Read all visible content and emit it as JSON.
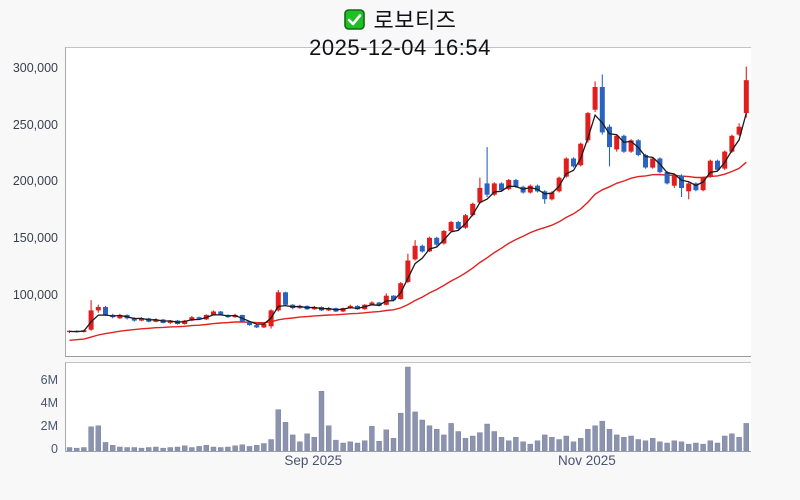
{
  "header": {
    "checkbox_icon": "green-checked-checkbox",
    "symbol_name": "로보티즈",
    "timestamp": "2025-12-04 16:54"
  },
  "colors": {
    "up_candle": "#e11d1d",
    "down_candle": "#2a64c0",
    "ma_fast_line": "#1b1b1b",
    "ma_slow_line": "#e12222",
    "volume_bar": "#8b93ae",
    "volume_bar_edge": "#747d99",
    "price_axis_label": "#3a3f4c",
    "volume_axis_label": "#495572",
    "panel_background": "#ffffff",
    "page_background": "#f8f8f9",
    "checkbox_green": "#1fc024"
  },
  "chart_data": {
    "type": "candlestick_with_volume",
    "title": "로보티즈",
    "subtitle": "2025-12-04 16:54",
    "legend_position": "none",
    "grid": false,
    "price_axis": {
      "tick_labels": [
        "300,000",
        "250,000",
        "200,000",
        "150,000",
        "100,000"
      ],
      "tick_values": [
        300000,
        250000,
        200000,
        150000,
        100000
      ],
      "range": [
        62000,
        312000
      ]
    },
    "volume_axis": {
      "tick_labels": [
        "6M",
        "4M",
        "2M",
        "0"
      ],
      "tick_values": [
        6000000,
        4000000,
        2000000,
        0
      ],
      "range": [
        0,
        7650000
      ]
    },
    "x_ticks": [
      {
        "label": "Sep 2025",
        "candle_index": 34
      },
      {
        "label": "Nov 2025",
        "candle_index": 72
      }
    ],
    "series_note": "ohlc arrays are [open, high, low, close] in KRW; volumes in millions of shares; red = up day, blue = down day",
    "moving_averages": {
      "fast": {
        "color_key": "ma_fast_line",
        "method": "ema",
        "alpha": 0.45,
        "seed": 69000
      },
      "slow": {
        "color_key": "ma_slow_line",
        "method": "ema",
        "alpha": 0.07,
        "seed": 61000
      }
    },
    "ohlc": [
      [
        69000,
        70500,
        68000,
        70000
      ],
      [
        70000,
        70500,
        68500,
        69000
      ],
      [
        69000,
        71000,
        68500,
        70500
      ],
      [
        71000,
        97000,
        70000,
        88000
      ],
      [
        88000,
        93000,
        86000,
        91000
      ],
      [
        91000,
        92000,
        83000,
        84000
      ],
      [
        84000,
        85000,
        81000,
        82000
      ],
      [
        81000,
        85000,
        80500,
        84000
      ],
      [
        84000,
        84500,
        80000,
        81000
      ],
      [
        81000,
        82000,
        78000,
        79000
      ],
      [
        79000,
        82000,
        78500,
        81000
      ],
      [
        81000,
        81500,
        77500,
        78000
      ],
      [
        78000,
        81000,
        77500,
        80000
      ],
      [
        80000,
        80500,
        76500,
        77000
      ],
      [
        77000,
        79500,
        76000,
        79000
      ],
      [
        79000,
        79500,
        75500,
        76000
      ],
      [
        76000,
        79500,
        75500,
        79000
      ],
      [
        79000,
        83000,
        78500,
        82000
      ],
      [
        82000,
        82500,
        79500,
        80000
      ],
      [
        80000,
        84500,
        79500,
        84000
      ],
      [
        84000,
        88000,
        83500,
        87000
      ],
      [
        87000,
        87500,
        83500,
        84000
      ],
      [
        84000,
        84500,
        81500,
        82000
      ],
      [
        82000,
        85000,
        81500,
        84000
      ],
      [
        84000,
        84000,
        77500,
        78000
      ],
      [
        78000,
        78500,
        74500,
        75000
      ],
      [
        75000,
        76000,
        72500,
        73000
      ],
      [
        73000,
        76500,
        72500,
        76000
      ],
      [
        74000,
        89000,
        72000,
        88000
      ],
      [
        88000,
        106000,
        87000,
        104000
      ],
      [
        104000,
        104500,
        92000,
        93000
      ],
      [
        93000,
        93500,
        89000,
        90000
      ],
      [
        90000,
        93000,
        89500,
        92000
      ],
      [
        92000,
        92500,
        88500,
        89000
      ],
      [
        89000,
        92000,
        88500,
        91000
      ],
      [
        91000,
        91500,
        87500,
        88000
      ],
      [
        88000,
        91000,
        87500,
        90000
      ],
      [
        90000,
        90500,
        86500,
        87000
      ],
      [
        87000,
        90500,
        86500,
        90000
      ],
      [
        90000,
        93000,
        89500,
        92000
      ],
      [
        92000,
        92500,
        88500,
        89000
      ],
      [
        89000,
        93500,
        88500,
        93000
      ],
      [
        93000,
        96000,
        92500,
        95000
      ],
      [
        95000,
        95500,
        91500,
        92000
      ],
      [
        93000,
        103000,
        92500,
        101000
      ],
      [
        101000,
        101500,
        96000,
        97000
      ],
      [
        98000,
        113000,
        97500,
        112000
      ],
      [
        113000,
        138000,
        112000,
        132000
      ],
      [
        133000,
        150000,
        132000,
        145000
      ],
      [
        145000,
        146000,
        139000,
        140000
      ],
      [
        140000,
        153000,
        139500,
        152000
      ],
      [
        152000,
        153000,
        145000,
        146000
      ],
      [
        147000,
        159000,
        146000,
        158000
      ],
      [
        158000,
        167000,
        157000,
        166000
      ],
      [
        166000,
        167000,
        159000,
        160000
      ],
      [
        161000,
        173000,
        160000,
        172000
      ],
      [
        172000,
        183000,
        171000,
        182000
      ],
      [
        183000,
        205000,
        182000,
        196000
      ],
      [
        200000,
        232000,
        188000,
        190000
      ],
      [
        190000,
        201000,
        189000,
        200000
      ],
      [
        200000,
        201000,
        193000,
        194000
      ],
      [
        195000,
        204000,
        194000,
        203000
      ],
      [
        203000,
        204000,
        196000,
        197000
      ],
      [
        197000,
        198000,
        191000,
        192000
      ],
      [
        192000,
        199000,
        191000,
        198000
      ],
      [
        198000,
        199000,
        192000,
        193000
      ],
      [
        193000,
        194000,
        182000,
        186000
      ],
      [
        186000,
        193000,
        185000,
        192000
      ],
      [
        193000,
        206000,
        192000,
        205000
      ],
      [
        206000,
        223000,
        205000,
        222000
      ],
      [
        222000,
        223000,
        214000,
        215000
      ],
      [
        216000,
        236000,
        215000,
        235000
      ],
      [
        238000,
        263000,
        236000,
        262000
      ],
      [
        265000,
        290000,
        263000,
        285000
      ],
      [
        285000,
        296000,
        243000,
        245000
      ],
      [
        250000,
        252000,
        215000,
        232000
      ],
      [
        230000,
        243000,
        228000,
        242000
      ],
      [
        242000,
        243000,
        227000,
        228000
      ],
      [
        228000,
        239000,
        227000,
        238000
      ],
      [
        238000,
        239000,
        224000,
        225000
      ],
      [
        225000,
        226000,
        213000,
        214000
      ],
      [
        214000,
        223000,
        213000,
        222000
      ],
      [
        222000,
        223000,
        209000,
        210000
      ],
      [
        210000,
        211000,
        199000,
        200000
      ],
      [
        198000,
        208000,
        196000,
        207000
      ],
      [
        207000,
        208000,
        188000,
        196000
      ],
      [
        193000,
        201000,
        186000,
        200000
      ],
      [
        200000,
        201000,
        193000,
        194000
      ],
      [
        194000,
        206000,
        193000,
        205000
      ],
      [
        206000,
        221000,
        205000,
        220000
      ],
      [
        220000,
        221000,
        211000,
        212000
      ],
      [
        213000,
        229000,
        212000,
        228000
      ],
      [
        228000,
        243000,
        227000,
        242000
      ],
      [
        243000,
        253000,
        242000,
        250000
      ],
      [
        262000,
        303000,
        258000,
        291000
      ]
    ],
    "volumes_millions": [
      0.3,
      0.25,
      0.3,
      2.1,
      2.2,
      0.75,
      0.5,
      0.35,
      0.3,
      0.3,
      0.25,
      0.3,
      0.35,
      0.25,
      0.3,
      0.35,
      0.45,
      0.3,
      0.4,
      0.5,
      0.35,
      0.3,
      0.35,
      0.45,
      0.55,
      0.4,
      0.5,
      0.65,
      1.0,
      3.6,
      2.5,
      1.4,
      0.8,
      1.5,
      1.2,
      5.2,
      2.2,
      0.95,
      0.7,
      0.8,
      0.7,
      0.9,
      2.15,
      0.85,
      1.85,
      1.1,
      3.3,
      7.3,
      3.4,
      2.7,
      2.2,
      1.9,
      1.4,
      2.4,
      1.7,
      1.1,
      1.3,
      1.6,
      2.35,
      1.7,
      1.2,
      0.9,
      1.2,
      0.8,
      0.6,
      0.9,
      1.4,
      1.2,
      1.0,
      1.3,
      0.8,
      1.1,
      1.9,
      2.2,
      2.6,
      1.9,
      1.4,
      1.2,
      1.3,
      1.0,
      0.9,
      1.1,
      0.8,
      0.7,
      0.9,
      0.8,
      0.6,
      0.7,
      0.6,
      0.9,
      0.7,
      1.3,
      1.5,
      1.2,
      2.4
    ]
  }
}
